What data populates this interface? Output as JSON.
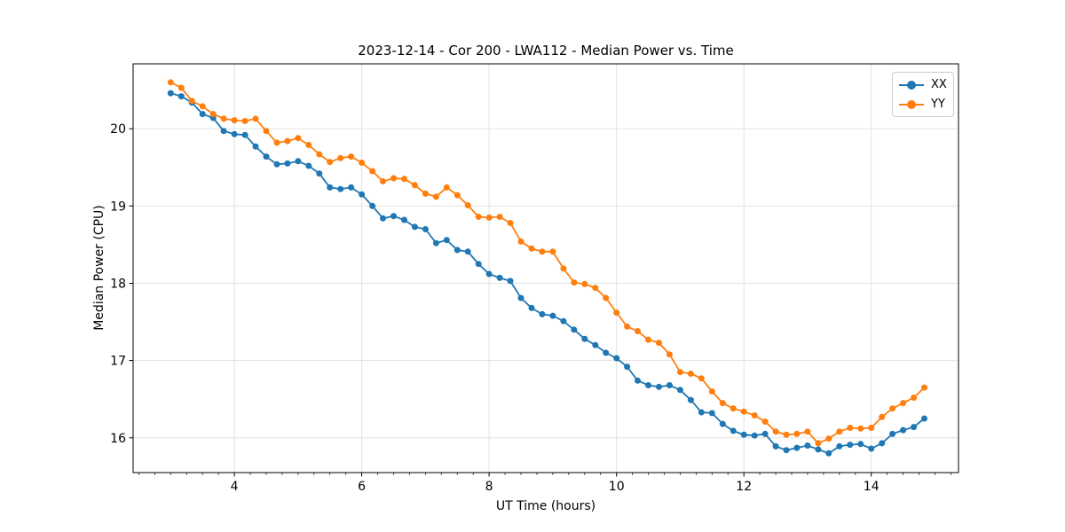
{
  "figure": {
    "title": "2023-12-14 - Cor 200 - LWA112 - Median Power vs. Time",
    "xlabel": "UT Time (hours)",
    "ylabel": "Median Power (CPU)",
    "background_color": "#ffffff"
  },
  "legend": {
    "position": "upper right",
    "items": [
      {
        "label": "XX",
        "color": "#1f77b4"
      },
      {
        "label": "YY",
        "color": "#ff7f0e"
      }
    ]
  },
  "chart_data": {
    "type": "line",
    "title": "2023-12-14 - Cor 200 - LWA112 - Median Power vs. Time",
    "xlabel": "UT Time (hours)",
    "ylabel": "Median Power (CPU)",
    "marker": "circle",
    "grid": true,
    "grid_color": "#e2e2e2",
    "spine_color": "#000000",
    "legend_position": "upper right",
    "xlim": [
      2.41,
      15.37
    ],
    "ylim": [
      15.55,
      20.84
    ],
    "xticks": [
      4,
      6,
      8,
      10,
      12,
      14
    ],
    "yticks": [
      16,
      17,
      18,
      19,
      20
    ],
    "x_minor_tick_step": 0.25,
    "x": [
      3.0,
      3.167,
      3.333,
      3.5,
      3.667,
      3.833,
      4.0,
      4.167,
      4.333,
      4.5,
      4.667,
      4.833,
      5.0,
      5.167,
      5.333,
      5.5,
      5.667,
      5.833,
      6.0,
      6.167,
      6.333,
      6.5,
      6.667,
      6.833,
      7.0,
      7.167,
      7.333,
      7.5,
      7.667,
      7.833,
      8.0,
      8.167,
      8.333,
      8.5,
      8.667,
      8.833,
      9.0,
      9.167,
      9.333,
      9.5,
      9.667,
      9.833,
      10.0,
      10.167,
      10.333,
      10.5,
      10.667,
      10.833,
      11.0,
      11.167,
      11.333,
      11.5,
      11.667,
      11.833,
      12.0,
      12.167,
      12.333,
      12.5,
      12.667,
      12.833,
      13.0,
      13.167,
      13.333,
      13.5,
      13.667,
      13.833,
      14.0,
      14.167,
      14.333,
      14.5,
      14.667,
      14.833
    ],
    "series": [
      {
        "name": "XX",
        "color": "#1f77b4",
        "values": [
          20.46,
          20.42,
          20.34,
          20.19,
          20.14,
          19.97,
          19.93,
          19.92,
          19.77,
          19.64,
          19.54,
          19.55,
          19.58,
          19.52,
          19.42,
          19.24,
          19.22,
          19.24,
          19.15,
          19.0,
          18.84,
          18.87,
          18.82,
          18.73,
          18.7,
          18.52,
          18.56,
          18.43,
          18.41,
          18.25,
          18.12,
          18.07,
          18.03,
          17.81,
          17.68,
          17.6,
          17.58,
          17.51,
          17.4,
          17.28,
          17.2,
          17.1,
          17.03,
          16.92,
          16.74,
          16.68,
          16.66,
          16.68,
          16.62,
          16.49,
          16.33,
          16.32,
          16.18,
          16.09,
          16.04,
          16.03,
          16.05,
          15.89,
          15.84,
          15.87,
          15.9,
          15.85,
          15.8,
          15.89,
          15.91,
          15.92,
          15.86,
          15.93,
          16.05,
          16.1,
          16.14,
          16.25
        ]
      },
      {
        "name": "YY",
        "color": "#ff7f0e",
        "values": [
          20.6,
          20.53,
          20.36,
          20.29,
          20.19,
          20.13,
          20.11,
          20.1,
          20.13,
          19.97,
          19.82,
          19.84,
          19.88,
          19.79,
          19.67,
          19.57,
          19.62,
          19.64,
          19.56,
          19.45,
          19.32,
          19.36,
          19.35,
          19.27,
          19.16,
          19.12,
          19.24,
          19.14,
          19.01,
          18.86,
          18.85,
          18.86,
          18.78,
          18.54,
          18.45,
          18.41,
          18.41,
          18.19,
          18.01,
          17.99,
          17.94,
          17.81,
          17.62,
          17.44,
          17.38,
          17.27,
          17.23,
          17.08,
          16.85,
          16.83,
          16.77,
          16.6,
          16.45,
          16.38,
          16.34,
          16.29,
          16.21,
          16.08,
          16.04,
          16.05,
          16.08,
          15.93,
          15.99,
          16.08,
          16.13,
          16.12,
          16.13,
          16.27,
          16.38,
          16.45,
          16.52,
          16.65
        ]
      }
    ]
  }
}
